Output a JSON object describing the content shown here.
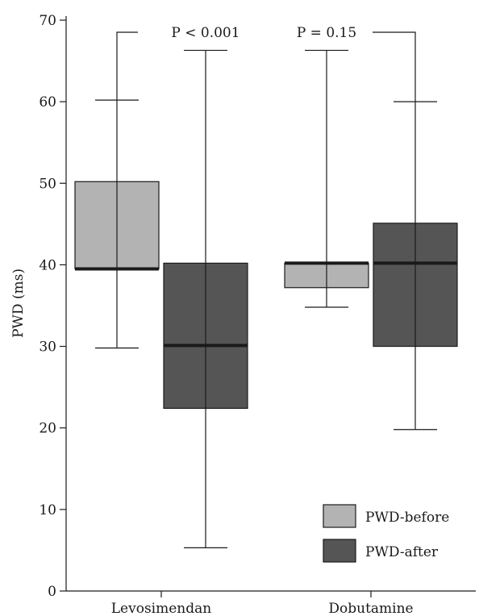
{
  "chart_data": {
    "type": "box",
    "title": "",
    "xlabel": "",
    "ylabel": "PWD (ms)",
    "ylim": [
      0,
      70
    ],
    "yticks": [
      0,
      10,
      20,
      30,
      40,
      50,
      60,
      70
    ],
    "grid": false,
    "legend_position": "bottom-right",
    "categories": [
      "Levosimendan",
      "Dobutamine"
    ],
    "series": [
      {
        "name": "PWD-before",
        "color": "#b3b3b3",
        "boxes": [
          {
            "category": "Levosimendan",
            "min": 29.8,
            "q1": 39.5,
            "median": 39.5,
            "q3": 50.2,
            "max": 60.2
          },
          {
            "category": "Dobutamine",
            "min": 34.8,
            "q1": 37.2,
            "median": 40.2,
            "q3": 40.2,
            "max": 66.3
          }
        ]
      },
      {
        "name": "PWD-after",
        "color": "#555555",
        "boxes": [
          {
            "category": "Levosimendan",
            "min": 5.3,
            "q1": 22.4,
            "median": 30.1,
            "q3": 40.2,
            "max": 66.3
          },
          {
            "category": "Dobutamine",
            "min": 19.8,
            "q1": 30.0,
            "median": 40.2,
            "q3": 45.1,
            "max": 60.0
          }
        ]
      }
    ],
    "annotations": [
      {
        "category": "Levosimendan",
        "text": "P < 0.001"
      },
      {
        "category": "Dobutamine",
        "text": "P = 0.15"
      }
    ]
  }
}
